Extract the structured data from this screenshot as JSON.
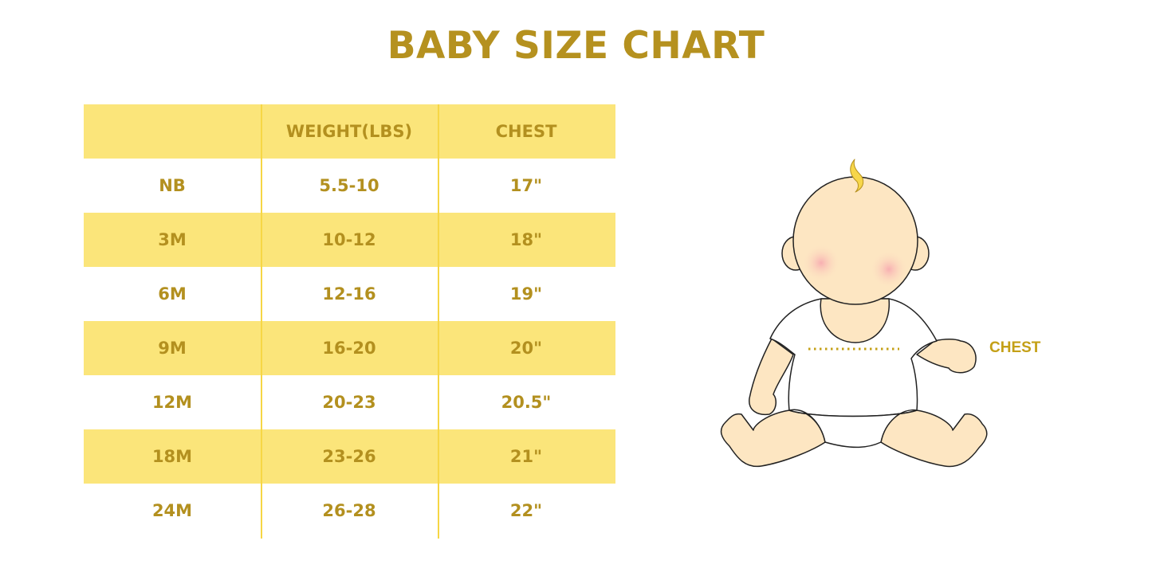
{
  "title": "BABY SIZE CHART",
  "table": {
    "headers": [
      "",
      "WEIGHT(LBS)",
      "CHEST"
    ],
    "rows": [
      [
        "NB",
        "5.5-10",
        "17\""
      ],
      [
        "3M",
        "10-12",
        "18\""
      ],
      [
        "6M",
        "12-16",
        "19\""
      ],
      [
        "9M",
        "16-20",
        "20\""
      ],
      [
        "12M",
        "20-23",
        "20.5\""
      ],
      [
        "18M",
        "23-26",
        "21\""
      ],
      [
        "24M",
        "26-28",
        "22\""
      ]
    ]
  },
  "illustration": {
    "chest_label": "CHEST"
  },
  "colors": {
    "text": "#b3901f",
    "band": "#fbe57a",
    "divider": "#f6d645",
    "skin": "#fde6c2"
  }
}
